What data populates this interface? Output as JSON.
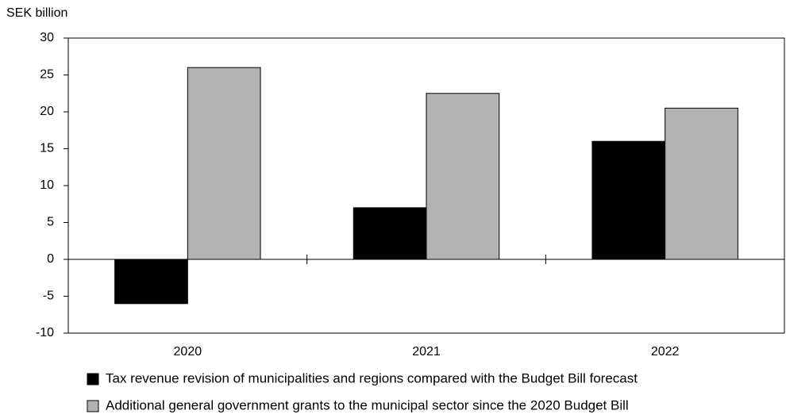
{
  "chart_data": {
    "type": "bar",
    "y_label": "SEK billion",
    "categories": [
      "2020",
      "2021",
      "2022"
    ],
    "series": [
      {
        "name": "Tax revenue revision of municipalities and regions compared with the Budget Bill forecast",
        "color": "#000000",
        "values": [
          -6,
          7,
          16
        ]
      },
      {
        "name": "Additional general government grants to the municipal sector since the 2020 Budget Bill",
        "color": "#b3b3b3",
        "values": [
          26,
          22.5,
          20.5
        ]
      }
    ],
    "ylim": [
      -10,
      30
    ],
    "yticks": [
      -10,
      -5,
      0,
      5,
      10,
      15,
      20,
      25,
      30
    ],
    "grid": false
  }
}
